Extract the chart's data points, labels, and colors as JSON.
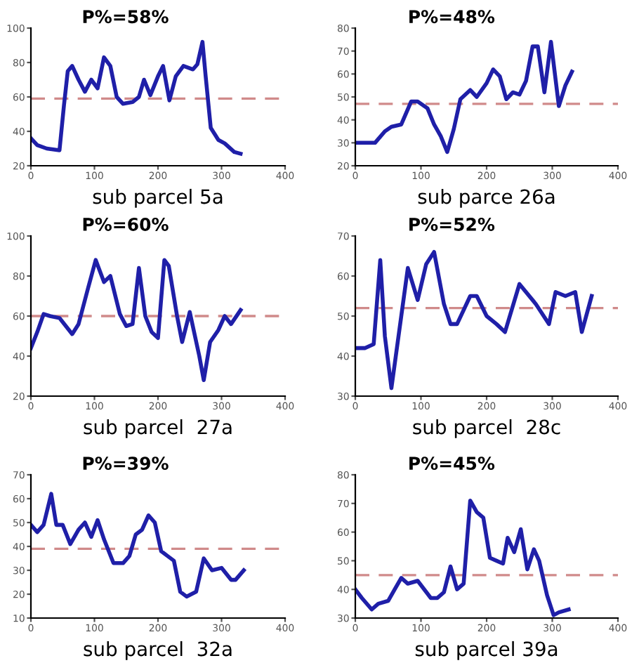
{
  "chart_data": [
    {
      "type": "line",
      "title": "P%=58%",
      "xlabel": "sub parcel 5a",
      "xlim": [
        0,
        400
      ],
      "xticks": [
        0,
        100,
        200,
        300,
        400
      ],
      "ylim": [
        20,
        100
      ],
      "yticks": [
        20,
        40,
        60,
        80,
        100
      ],
      "grid": false,
      "legend": false,
      "ref_lines": [
        {
          "axis": "y",
          "value": 59,
          "color": "#d08a8a",
          "line_style": "dashed"
        }
      ],
      "series": [
        {
          "color": "#1f1fa8",
          "x": [
            0,
            10,
            25,
            45,
            52,
            58,
            65,
            75,
            85,
            95,
            105,
            115,
            125,
            135,
            145,
            160,
            170,
            178,
            188,
            200,
            208,
            218,
            228,
            240,
            255,
            262,
            270,
            275,
            283,
            295,
            305,
            320,
            330
          ],
          "values": [
            36,
            32,
            30,
            29,
            55,
            75,
            78,
            70,
            63,
            70,
            65,
            83,
            78,
            60,
            56,
            57,
            60,
            70,
            61,
            72,
            78,
            58,
            72,
            78,
            76,
            79,
            92,
            72,
            42,
            35,
            33,
            28,
            27
          ]
        }
      ]
    },
    {
      "type": "line",
      "title": "P%=48%",
      "xlabel": "sub parce 26a",
      "xlim": [
        0,
        400
      ],
      "xticks": [
        0,
        100,
        200,
        300,
        400
      ],
      "ylim": [
        20,
        80
      ],
      "yticks": [
        20,
        30,
        40,
        50,
        60,
        70,
        80
      ],
      "grid": false,
      "legend": false,
      "ref_lines": [
        {
          "axis": "y",
          "value": 47,
          "color": "#d08a8a",
          "line_style": "dashed"
        }
      ],
      "series": [
        {
          "color": "#1f1fa8",
          "x": [
            0,
            30,
            45,
            55,
            70,
            85,
            95,
            110,
            120,
            130,
            140,
            150,
            160,
            175,
            185,
            200,
            210,
            220,
            230,
            240,
            250,
            260,
            270,
            278,
            288,
            298,
            310,
            320,
            330
          ],
          "values": [
            30,
            30,
            35,
            37,
            38,
            48,
            48,
            45,
            38,
            33,
            26,
            36,
            49,
            53,
            50,
            56,
            62,
            59,
            49,
            52,
            51,
            57,
            72,
            72,
            52,
            74,
            46,
            55,
            61
          ]
        }
      ]
    },
    {
      "type": "line",
      "title": "P%=60%",
      "xlabel": "sub parcel  27a",
      "xlim": [
        0,
        400
      ],
      "xticks": [
        0,
        100,
        200,
        300,
        400
      ],
      "ylim": [
        20,
        100
      ],
      "yticks": [
        20,
        40,
        60,
        80,
        100
      ],
      "grid": false,
      "legend": false,
      "ref_lines": [
        {
          "axis": "y",
          "value": 60,
          "color": "#d08a8a",
          "line_style": "dashed"
        }
      ],
      "series": [
        {
          "color": "#1f1fa8",
          "x": [
            0,
            10,
            20,
            30,
            45,
            65,
            75,
            90,
            102,
            115,
            125,
            140,
            150,
            160,
            170,
            180,
            190,
            200,
            210,
            217,
            230,
            238,
            250,
            265,
            272,
            282,
            295,
            305,
            315,
            330
          ],
          "values": [
            44,
            52,
            61,
            60,
            59,
            51,
            56,
            74,
            88,
            77,
            80,
            61,
            55,
            56,
            84,
            60,
            52,
            49,
            88,
            85,
            60,
            47,
            62,
            40,
            28,
            47,
            53,
            60,
            56,
            63
          ]
        }
      ]
    },
    {
      "type": "line",
      "title": "P%=52%",
      "xlabel": "sub parcel  28c",
      "xlim": [
        0,
        400
      ],
      "xticks": [
        0,
        100,
        200,
        300,
        400
      ],
      "ylim": [
        30,
        70
      ],
      "yticks": [
        30,
        40,
        50,
        60,
        70
      ],
      "grid": false,
      "legend": false,
      "ref_lines": [
        {
          "axis": "y",
          "value": 52,
          "color": "#d08a8a",
          "line_style": "dashed"
        }
      ],
      "series": [
        {
          "color": "#1f1fa8",
          "x": [
            0,
            15,
            28,
            38,
            45,
            55,
            70,
            80,
            95,
            108,
            120,
            135,
            145,
            155,
            175,
            185,
            200,
            215,
            228,
            250,
            275,
            295,
            305,
            320,
            335,
            345,
            360
          ],
          "values": [
            42,
            42,
            43,
            64,
            45,
            32,
            50,
            62,
            54,
            63,
            66,
            53,
            48,
            48,
            55,
            55,
            50,
            48,
            46,
            58,
            53,
            48,
            56,
            55,
            56,
            46,
            55
          ]
        }
      ]
    },
    {
      "type": "line",
      "title": "P%=39%",
      "xlabel": "sub parcel  32a",
      "xlim": [
        0,
        400
      ],
      "xticks": [
        0,
        100,
        200,
        300,
        400
      ],
      "ylim": [
        10,
        70
      ],
      "yticks": [
        10,
        20,
        30,
        40,
        50,
        60,
        70
      ],
      "grid": false,
      "legend": false,
      "ref_lines": [
        {
          "axis": "y",
          "value": 39,
          "color": "#d08a8a",
          "line_style": "dashed"
        }
      ],
      "series": [
        {
          "color": "#1f1fa8",
          "x": [
            0,
            10,
            20,
            32,
            40,
            50,
            62,
            75,
            85,
            95,
            105,
            115,
            130,
            145,
            155,
            165,
            175,
            185,
            195,
            205,
            215,
            225,
            235,
            245,
            260,
            272,
            285,
            300,
            315,
            322,
            335
          ],
          "values": [
            49,
            46,
            49,
            62,
            49,
            49,
            41,
            47,
            50,
            44,
            51,
            43,
            33,
            33,
            36,
            45,
            47,
            53,
            50,
            38,
            36,
            34,
            21,
            19,
            21,
            35,
            30,
            31,
            26,
            26,
            30
          ]
        }
      ]
    },
    {
      "type": "line",
      "title": "P%=45%",
      "xlabel": "sub parcel 39a",
      "xlim": [
        0,
        400
      ],
      "xticks": [
        0,
        100,
        200,
        300,
        400
      ],
      "ylim": [
        30,
        80
      ],
      "yticks": [
        30,
        40,
        50,
        60,
        70,
        80
      ],
      "grid": false,
      "legend": false,
      "ref_lines": [
        {
          "axis": "y",
          "value": 45,
          "color": "#d08a8a",
          "line_style": "dashed"
        }
      ],
      "series": [
        {
          "color": "#1f1fa8",
          "x": [
            0,
            10,
            25,
            35,
            50,
            60,
            70,
            80,
            95,
            105,
            115,
            125,
            135,
            145,
            155,
            165,
            175,
            185,
            195,
            205,
            215,
            225,
            232,
            242,
            252,
            262,
            272,
            280,
            292,
            302,
            310,
            325
          ],
          "values": [
            40,
            37,
            33,
            35,
            36,
            40,
            44,
            42,
            43,
            40,
            37,
            37,
            39,
            48,
            40,
            42,
            71,
            67,
            65,
            51,
            50,
            49,
            58,
            53,
            61,
            47,
            54,
            50,
            38,
            31,
            32,
            33
          ]
        }
      ]
    }
  ]
}
